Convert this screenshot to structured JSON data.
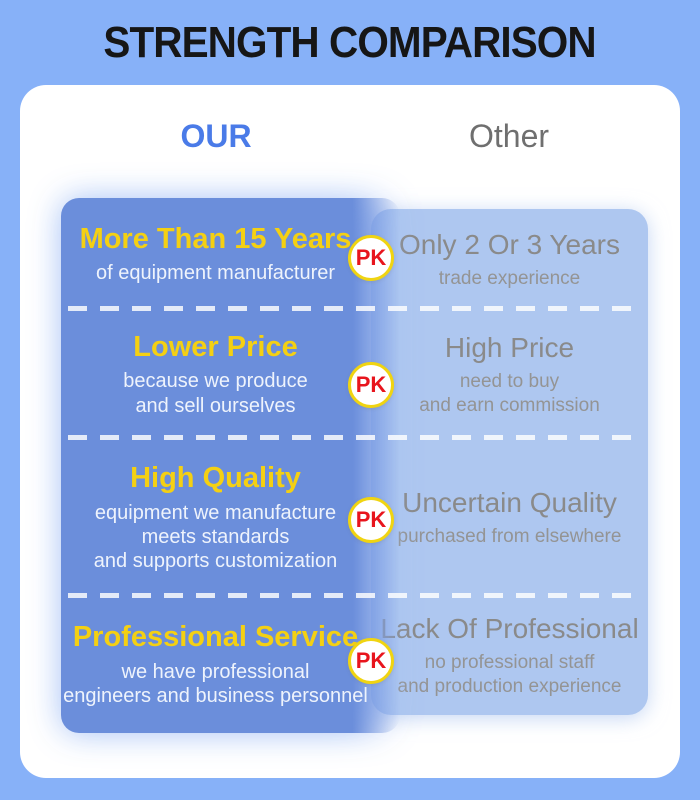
{
  "title": "STRENGTH COMPARISON",
  "columns": {
    "our_label": "OUR",
    "other_label": "Other"
  },
  "badge_label": "PK",
  "colors": {
    "background": "#87b1f8",
    "card": "#ffffff",
    "our_header_text": "#4a7be8",
    "other_header_text": "#6f6f6f",
    "our_panel": "#6b8edb",
    "other_panel": "#aec7f0",
    "our_row_title_text": "#f4d013",
    "our_row_desc_text": "#eef3fc",
    "other_row_text": "#8a8a8a",
    "badge_text": "#e8151d",
    "badge_ring": "#f0d411",
    "title_text": "#161616"
  },
  "rows": [
    {
      "our_title": "More Than 15 Years",
      "our_desc": [
        "of equipment manufacturer"
      ],
      "other_title": "Only 2 Or 3 Years",
      "other_desc": [
        "trade experience"
      ]
    },
    {
      "our_title": "Lower Price",
      "our_desc": [
        "because we produce",
        "and sell ourselves"
      ],
      "other_title": "High Price",
      "other_desc": [
        "need to buy",
        "and earn commission"
      ]
    },
    {
      "our_title": "High Quality",
      "our_desc": [
        "equipment we manufacture",
        "meets standards",
        "and supports customization"
      ],
      "other_title": "Uncertain Quality",
      "other_desc": [
        "purchased from elsewhere"
      ]
    },
    {
      "our_title": "Professional Service",
      "our_desc": [
        "we have professional",
        "engineers and business personnel"
      ],
      "other_title": "Lack Of Professional",
      "other_desc": [
        "no professional staff",
        "and production experience"
      ]
    }
  ]
}
